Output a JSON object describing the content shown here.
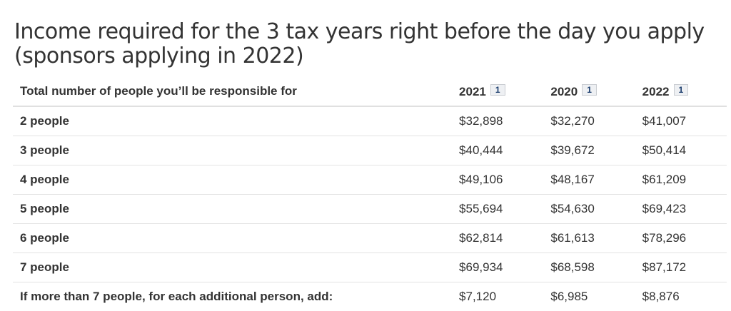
{
  "title": "Income required for the 3 tax years right before the day you apply (sponsors applying in 2022)",
  "table": {
    "header": {
      "label": "Total number of people you’ll be responsible for",
      "years": [
        {
          "year": "2021",
          "footnote": "1"
        },
        {
          "year": "2020",
          "footnote": "1"
        },
        {
          "year": "2022",
          "footnote": "1"
        }
      ]
    },
    "rows": [
      {
        "label": "2 people",
        "values": [
          "$32,898",
          "$32,270",
          "$41,007"
        ]
      },
      {
        "label": "3 people",
        "values": [
          "$40,444",
          "$39,672",
          "$50,414"
        ]
      },
      {
        "label": "4 people",
        "values": [
          "$49,106",
          "$48,167",
          "$61,209"
        ]
      },
      {
        "label": "5 people",
        "values": [
          "$55,694",
          "$54,630",
          "$69,423"
        ]
      },
      {
        "label": "6 people",
        "values": [
          "$62,814",
          "$61,613",
          "$78,296"
        ]
      },
      {
        "label": "7 people",
        "values": [
          "$69,934",
          "$68,598",
          "$87,172"
        ]
      },
      {
        "label": "If more than 7 people, for each additional person, add:",
        "values": [
          "$7,120",
          "$6,985",
          "$8,876"
        ]
      }
    ]
  }
}
